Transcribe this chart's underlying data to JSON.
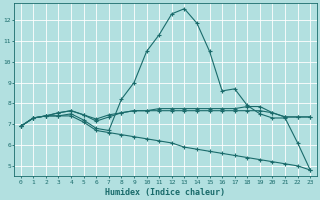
{
  "xlabel": "Humidex (Indice chaleur)",
  "ylabel": "",
  "bg_color": "#b2e0e0",
  "grid_color": "#ffffff",
  "line_color": "#1a6b6b",
  "xlim": [
    -0.5,
    23.5
  ],
  "ylim": [
    4.5,
    12.8
  ],
  "yticks": [
    5,
    6,
    7,
    8,
    9,
    10,
    11,
    12
  ],
  "xticks": [
    0,
    1,
    2,
    3,
    4,
    5,
    6,
    7,
    8,
    9,
    10,
    11,
    12,
    13,
    14,
    15,
    16,
    17,
    18,
    19,
    20,
    21,
    22,
    23
  ],
  "line1_x": [
    0,
    1,
    2,
    3,
    4,
    5,
    6,
    7,
    8,
    9,
    10,
    11,
    12,
    13,
    14,
    15,
    16,
    17,
    18,
    19,
    20,
    21,
    22,
    23
  ],
  "line1_y": [
    6.9,
    7.3,
    7.4,
    7.4,
    7.5,
    7.2,
    6.8,
    6.7,
    8.2,
    9.0,
    10.5,
    11.3,
    12.3,
    12.55,
    11.85,
    10.5,
    8.6,
    8.7,
    7.9,
    7.5,
    7.3,
    7.3,
    6.1,
    4.8
  ],
  "line2_x": [
    0,
    1,
    2,
    3,
    4,
    5,
    6,
    7,
    8,
    9,
    10,
    11,
    12,
    13,
    14,
    15,
    16,
    17,
    18,
    19,
    20,
    21,
    22,
    23
  ],
  "line2_y": [
    6.9,
    7.3,
    7.4,
    7.55,
    7.65,
    7.45,
    7.25,
    7.45,
    7.55,
    7.65,
    7.65,
    7.65,
    7.65,
    7.65,
    7.65,
    7.65,
    7.65,
    7.65,
    7.65,
    7.65,
    7.55,
    7.35,
    7.35,
    7.35
  ],
  "line3_x": [
    0,
    1,
    2,
    3,
    4,
    5,
    6,
    7,
    8,
    9,
    10,
    11,
    12,
    13,
    14,
    15,
    16,
    17,
    18,
    19,
    20,
    21,
    22,
    23
  ],
  "line3_y": [
    6.9,
    7.3,
    7.4,
    7.55,
    7.65,
    7.45,
    7.15,
    7.35,
    7.55,
    7.65,
    7.65,
    7.75,
    7.75,
    7.75,
    7.75,
    7.75,
    7.75,
    7.75,
    7.85,
    7.85,
    7.55,
    7.35,
    7.35,
    7.35
  ],
  "line4_x": [
    0,
    1,
    2,
    3,
    4,
    5,
    6,
    7,
    8,
    9,
    10,
    11,
    12,
    13,
    14,
    15,
    16,
    17,
    18,
    19,
    20,
    21,
    22,
    23
  ],
  "line4_y": [
    6.9,
    7.3,
    7.4,
    7.4,
    7.4,
    7.1,
    6.7,
    6.6,
    6.5,
    6.4,
    6.3,
    6.2,
    6.1,
    5.9,
    5.8,
    5.7,
    5.6,
    5.5,
    5.4,
    5.3,
    5.2,
    5.1,
    5.0,
    4.8
  ]
}
